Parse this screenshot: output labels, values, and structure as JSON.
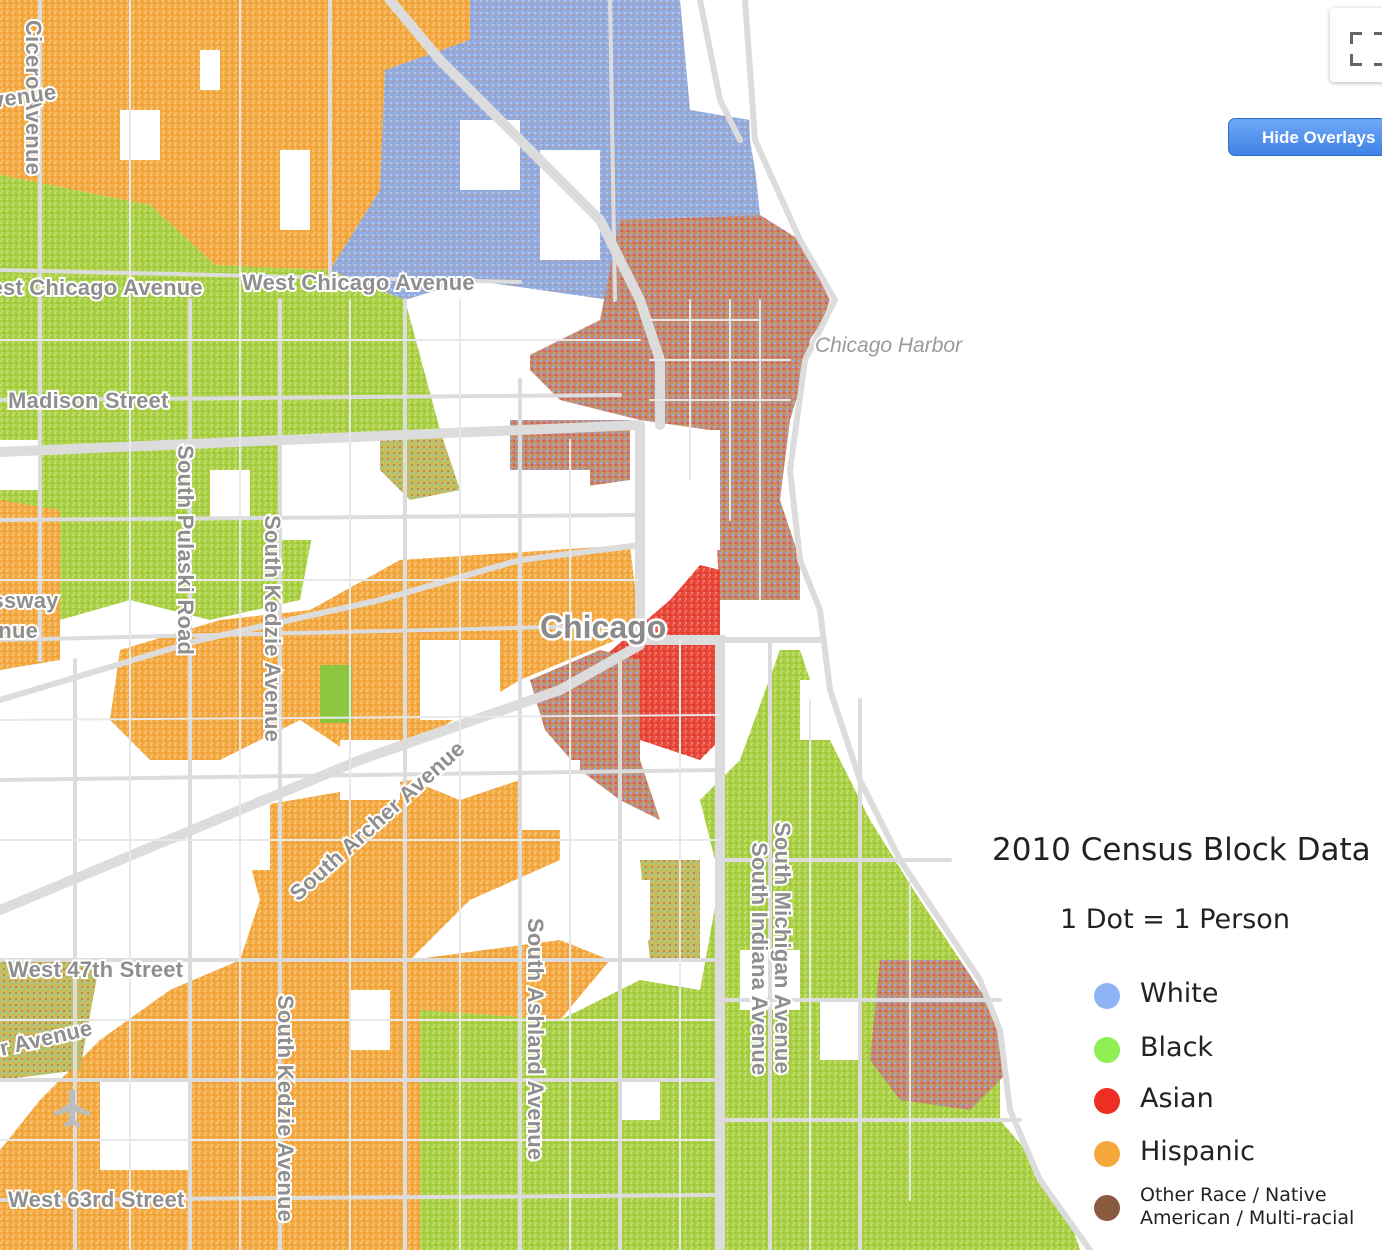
{
  "controls": {
    "fullscreen_icon": "fullscreen-icon",
    "hide_overlays_label": "Hide Overlays"
  },
  "map": {
    "city_label": "Chicago",
    "water_labels": [
      "Chicago Harbor"
    ],
    "road_labels": [
      "Cicero Avenue",
      "West Chicago Avenue",
      "West Chicago Avenue",
      "Madison Street",
      "South Pulaski Road",
      "South Kedzie Avenue",
      "South Archer Avenue",
      "South Ashland Avenue",
      "South Michigan Avenue",
      "South Indiana Avenue",
      "West 47th Street",
      "Archer Avenue",
      "South Kedzie Avenue",
      "West 63rd Street",
      "Ogden Avenue",
      "Stevenson Expressway",
      "Avenue"
    ],
    "airport_icon": "airplane-icon"
  },
  "legend": {
    "title": "2010 Census Block Data",
    "subtitle": "1 Dot = 1 Person",
    "items": [
      {
        "label": "White",
        "color": "#8fb4f5"
      },
      {
        "label": "Black",
        "color": "#8ef055"
      },
      {
        "label": "Asian",
        "color": "#ee2e22"
      },
      {
        "label": "Hispanic",
        "color": "#f6a83c"
      },
      {
        "label": "Other Race / Native\nAmerican / Multi-racial",
        "color": "#8a5a40"
      }
    ]
  }
}
